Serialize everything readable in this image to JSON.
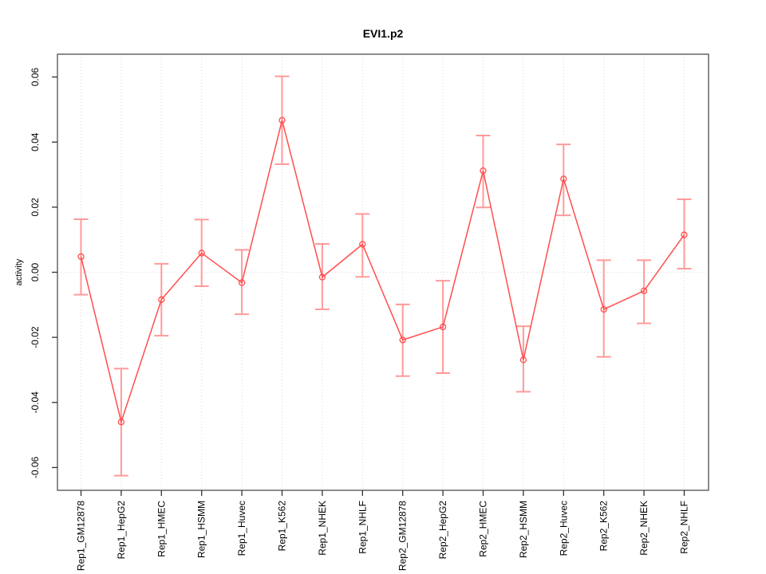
{
  "chart_data": {
    "type": "line",
    "title": "EVI1.p2",
    "xlabel": "",
    "ylabel": "activity",
    "categories": [
      "Rep1_GM12878",
      "Rep1_HepG2",
      "Rep1_HMEC",
      "Rep1_HSMM",
      "Rep1_Huvec",
      "Rep1_K562",
      "Rep1_NHEK",
      "Rep1_NHLF",
      "Rep2_GM12878",
      "Rep2_HepG2",
      "Rep2_HMEC",
      "Rep2_HSMM",
      "Rep2_Huvec",
      "Rep2_K562",
      "Rep2_NHEK",
      "Rep2_NHLF"
    ],
    "series": [
      {
        "name": "activity",
        "values": [
          0.0048,
          -0.046,
          -0.0084,
          0.0059,
          -0.0032,
          0.0467,
          -0.0015,
          0.0086,
          -0.0208,
          -0.0168,
          0.0312,
          -0.0269,
          0.0287,
          -0.0114,
          -0.0057,
          0.0115
        ],
        "err_low": [
          -0.0069,
          -0.0625,
          -0.0195,
          -0.0043,
          -0.0129,
          0.0332,
          -0.0114,
          -0.0014,
          -0.0319,
          -0.031,
          0.0199,
          -0.0367,
          0.0175,
          -0.026,
          -0.0157,
          0.0011
        ],
        "err_high": [
          0.0163,
          -0.0296,
          0.0026,
          0.0162,
          0.0069,
          0.0602,
          0.0087,
          0.0179,
          -0.0099,
          -0.0026,
          0.042,
          -0.0166,
          0.0393,
          0.0037,
          0.0037,
          0.0224
        ]
      }
    ],
    "ylim": [
      -0.067,
      0.067
    ],
    "yticks": [
      -0.06,
      -0.04,
      -0.02,
      0.0,
      0.02,
      0.04,
      0.06
    ],
    "ytick_labels": [
      "-0.06",
      "-0.04",
      "-0.02",
      "0.00",
      "0.02",
      "0.04",
      "0.06"
    ],
    "grid": "dotted vertical line at each category; dotted horizontal line at y=0",
    "legend": "none",
    "marker": "open-circle",
    "colors": {
      "line": "#ff4d4d",
      "marker": "#ff4d4d",
      "error_bar": "#ff9a9a",
      "gridline": "#d9d9d9",
      "axis_box": "#666666",
      "tick": "#333333",
      "text": "#000000",
      "background": "#ffffff"
    }
  }
}
